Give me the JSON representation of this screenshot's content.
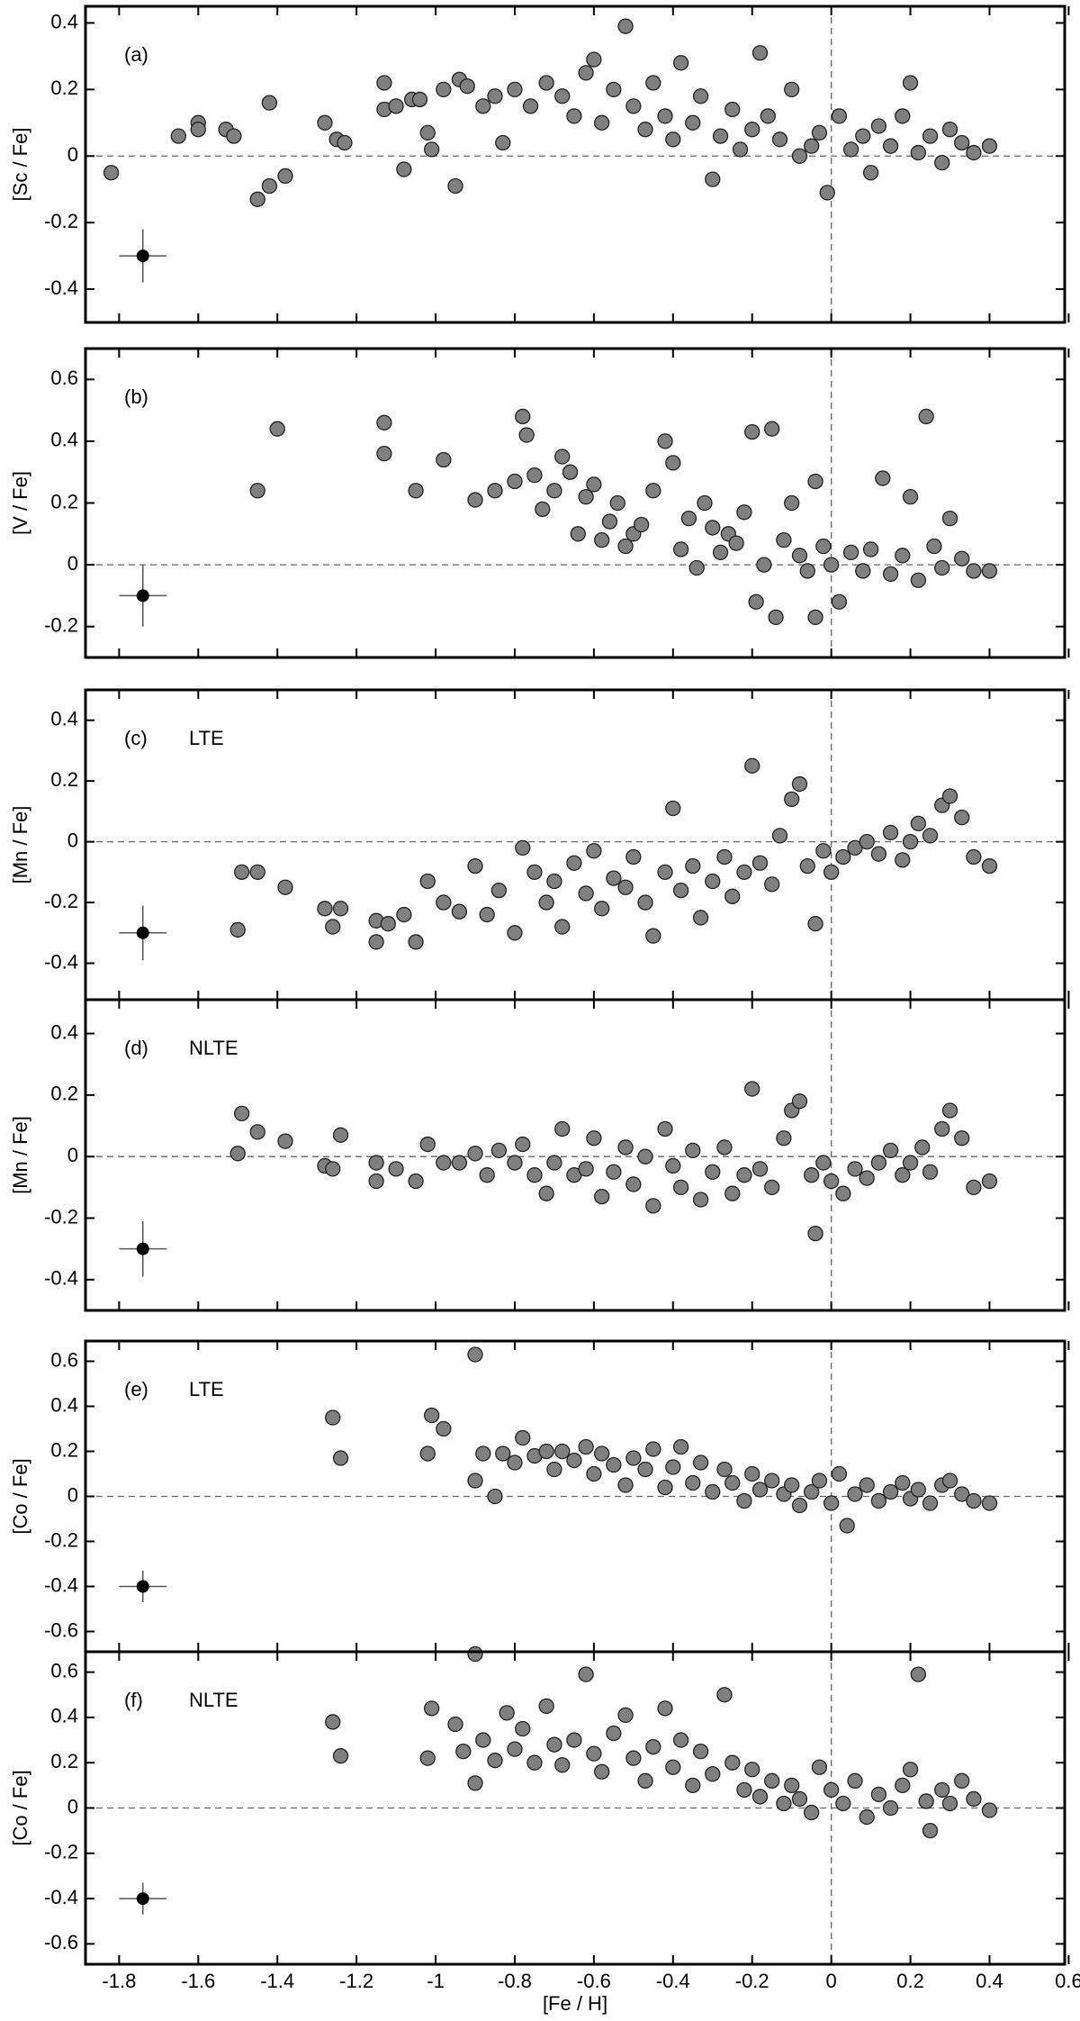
{
  "chart_data": [
    {
      "type": "scatter",
      "panel_label": "(a)",
      "ylabel": "[Sc / Fe]",
      "color": "#808080",
      "xlim": [
        -1.885,
        0.59
      ],
      "ylim": [
        -0.5,
        0.45
      ],
      "xticks": [
        -1.8,
        -1.6,
        -1.4,
        -1.2,
        -1,
        -0.8,
        -0.6,
        -0.4,
        -0.2,
        0,
        0.2,
        0.4,
        0.6
      ],
      "yticks": [
        -0.4,
        -0.2,
        0,
        0.2,
        0.4
      ],
      "xtick_labels": false,
      "hline": 0,
      "vline": 0,
      "error_bar": {
        "x": -1.74,
        "y": -0.3,
        "xerr": 0.06,
        "yerr": 0.08
      },
      "x": [
        -1.82,
        -1.65,
        -1.6,
        -1.6,
        -1.53,
        -1.51,
        -1.45,
        -1.42,
        -1.38,
        -1.42,
        -1.28,
        -1.25,
        -1.23,
        -1.13,
        -1.13,
        -1.1,
        -1.08,
        -1.06,
        -1.04,
        -1.02,
        -1.01,
        -0.98,
        -0.95,
        -0.94,
        -0.92,
        -0.88,
        -0.85,
        -0.83,
        -0.8,
        -0.76,
        -0.72,
        -0.68,
        -0.65,
        -0.62,
        -0.6,
        -0.58,
        -0.55,
        -0.52,
        -0.5,
        -0.47,
        -0.45,
        -0.42,
        -0.4,
        -0.38,
        -0.35,
        -0.33,
        -0.3,
        -0.28,
        -0.25,
        -0.23,
        -0.2,
        -0.18,
        -0.16,
        -0.13,
        -0.1,
        -0.08,
        -0.05,
        -0.03,
        -0.01,
        0.02,
        0.05,
        0.08,
        0.1,
        0.12,
        0.15,
        0.18,
        0.2,
        0.22,
        0.25,
        0.28,
        0.3,
        0.33,
        0.36,
        0.4
      ],
      "y": [
        -0.05,
        0.06,
        0.1,
        0.08,
        0.08,
        0.06,
        -0.13,
        -0.09,
        -0.06,
        0.16,
        0.1,
        0.05,
        0.04,
        0.22,
        0.14,
        0.15,
        -0.04,
        0.17,
        0.17,
        0.07,
        0.02,
        0.2,
        -0.09,
        0.23,
        0.21,
        0.15,
        0.18,
        0.04,
        0.2,
        0.15,
        0.22,
        0.18,
        0.12,
        0.25,
        0.29,
        0.1,
        0.2,
        0.39,
        0.15,
        0.08,
        0.22,
        0.12,
        0.05,
        0.28,
        0.1,
        0.18,
        -0.07,
        0.06,
        0.14,
        0.02,
        0.08,
        0.31,
        0.12,
        0.05,
        0.2,
        0,
        0.03,
        0.07,
        -0.11,
        0.12,
        0.02,
        0.06,
        -0.05,
        0.09,
        0.03,
        0.12,
        0.22,
        0.01,
        0.06,
        -0.02,
        0.08,
        0.04,
        0.01,
        0.03
      ]
    },
    {
      "type": "scatter",
      "panel_label": "(b)",
      "ylabel": "[V / Fe]",
      "color": "#808080",
      "xlim": [
        -1.885,
        0.59
      ],
      "ylim": [
        -0.3,
        0.7
      ],
      "xticks": [
        -1.8,
        -1.6,
        -1.4,
        -1.2,
        -1,
        -0.8,
        -0.6,
        -0.4,
        -0.2,
        0,
        0.2,
        0.4,
        0.6
      ],
      "yticks": [
        -0.2,
        0,
        0.2,
        0.4,
        0.6
      ],
      "xtick_labels": false,
      "hline": 0,
      "vline": 0,
      "error_bar": {
        "x": -1.74,
        "y": -0.1,
        "xerr": 0.06,
        "yerr": 0.1
      },
      "x": [
        -1.45,
        -1.4,
        -1.13,
        -1.13,
        -1.05,
        -0.98,
        -0.9,
        -0.85,
        -0.8,
        -0.78,
        -0.77,
        -0.75,
        -0.73,
        -0.7,
        -0.68,
        -0.66,
        -0.64,
        -0.62,
        -0.6,
        -0.58,
        -0.56,
        -0.54,
        -0.52,
        -0.5,
        -0.48,
        -0.45,
        -0.42,
        -0.4,
        -0.38,
        -0.36,
        -0.34,
        -0.32,
        -0.3,
        -0.28,
        -0.26,
        -0.24,
        -0.22,
        -0.2,
        -0.19,
        -0.17,
        -0.15,
        -0.14,
        -0.12,
        -0.1,
        -0.08,
        -0.06,
        -0.04,
        -0.04,
        -0.02,
        0,
        0.02,
        0.05,
        0.08,
        0.1,
        0.13,
        0.15,
        0.18,
        0.2,
        0.22,
        0.24,
        0.26,
        0.28,
        0.3,
        0.33,
        0.36,
        0.4
      ],
      "y": [
        0.24,
        0.44,
        0.46,
        0.36,
        0.24,
        0.34,
        0.21,
        0.24,
        0.27,
        0.48,
        0.42,
        0.29,
        0.18,
        0.24,
        0.35,
        0.3,
        0.1,
        0.22,
        0.26,
        0.08,
        0.14,
        0.2,
        0.06,
        0.1,
        0.13,
        0.24,
        0.4,
        0.33,
        0.05,
        0.15,
        -0.01,
        0.2,
        0.12,
        0.04,
        0.1,
        0.07,
        0.17,
        0.43,
        -0.12,
        0,
        0.44,
        -0.17,
        0.08,
        0.2,
        0.03,
        -0.02,
        0.27,
        -0.17,
        0.06,
        0,
        -0.12,
        0.04,
        -0.02,
        0.05,
        0.28,
        -0.03,
        0.03,
        0.22,
        -0.05,
        0.48,
        0.06,
        -0.01,
        0.15,
        0.02,
        -0.02,
        -0.02
      ]
    },
    {
      "type": "scatter",
      "panel_label": "(c)",
      "annotation": "LTE",
      "ylabel": "[Mn / Fe]",
      "color": "#808080",
      "xlim": [
        -1.885,
        0.59
      ],
      "ylim": [
        -0.52,
        0.5
      ],
      "xticks": [
        -1.8,
        -1.6,
        -1.4,
        -1.2,
        -1,
        -0.8,
        -0.6,
        -0.4,
        -0.2,
        0,
        0.2,
        0.4,
        0.6
      ],
      "yticks": [
        -0.4,
        -0.2,
        0,
        0.2,
        0.4
      ],
      "xtick_labels": false,
      "hline": 0,
      "vline": 0,
      "error_bar": {
        "x": -1.74,
        "y": -0.3,
        "xerr": 0.06,
        "yerr": 0.09
      },
      "x": [
        -1.5,
        -1.49,
        -1.45,
        -1.38,
        -1.28,
        -1.26,
        -1.24,
        -1.15,
        -1.15,
        -1.12,
        -1.08,
        -1.05,
        -1.02,
        -0.98,
        -0.94,
        -0.9,
        -0.87,
        -0.84,
        -0.8,
        -0.78,
        -0.75,
        -0.72,
        -0.7,
        -0.68,
        -0.65,
        -0.62,
        -0.6,
        -0.58,
        -0.55,
        -0.52,
        -0.5,
        -0.47,
        -0.45,
        -0.42,
        -0.4,
        -0.38,
        -0.35,
        -0.33,
        -0.3,
        -0.27,
        -0.25,
        -0.22,
        -0.2,
        -0.18,
        -0.15,
        -0.13,
        -0.1,
        -0.08,
        -0.06,
        -0.04,
        -0.02,
        0,
        0.03,
        0.06,
        0.09,
        0.12,
        0.15,
        0.18,
        0.2,
        0.22,
        0.25,
        0.28,
        0.3,
        0.33,
        0.36,
        0.4
      ],
      "y": [
        -0.29,
        -0.1,
        -0.1,
        -0.15,
        -0.22,
        -0.28,
        -0.22,
        -0.26,
        -0.33,
        -0.27,
        -0.24,
        -0.33,
        -0.13,
        -0.2,
        -0.23,
        -0.08,
        -0.24,
        -0.16,
        -0.3,
        -0.02,
        -0.1,
        -0.2,
        -0.13,
        -0.28,
        -0.07,
        -0.17,
        -0.03,
        -0.22,
        -0.12,
        -0.15,
        -0.05,
        -0.2,
        -0.31,
        -0.1,
        0.11,
        -0.16,
        -0.08,
        -0.25,
        -0.13,
        -0.05,
        -0.18,
        -0.1,
        0.25,
        -0.07,
        -0.14,
        0.02,
        0.14,
        0.19,
        -0.08,
        -0.27,
        -0.03,
        -0.1,
        -0.05,
        -0.02,
        0,
        -0.04,
        0.03,
        -0.06,
        0,
        0.06,
        0.02,
        0.12,
        0.15,
        0.08,
        -0.05,
        -0.08
      ]
    },
    {
      "type": "scatter",
      "panel_label": "(d)",
      "annotation": "NLTE",
      "ylabel": "[Mn / Fe]",
      "color": "#808080",
      "xlim": [
        -1.885,
        0.59
      ],
      "ylim": [
        -0.5,
        0.51
      ],
      "xticks": [
        -1.8,
        -1.6,
        -1.4,
        -1.2,
        -1,
        -0.8,
        -0.6,
        -0.4,
        -0.2,
        0,
        0.2,
        0.4,
        0.6
      ],
      "yticks": [
        -0.4,
        -0.2,
        0,
        0.2,
        0.4
      ],
      "xtick_labels": false,
      "hline": 0,
      "vline": 0,
      "error_bar": {
        "x": -1.74,
        "y": -0.3,
        "xerr": 0.06,
        "yerr": 0.09
      },
      "x": [
        -1.5,
        -1.49,
        -1.45,
        -1.38,
        -1.28,
        -1.26,
        -1.24,
        -1.15,
        -1.15,
        -1.1,
        -1.05,
        -1.02,
        -0.98,
        -0.94,
        -0.9,
        -0.87,
        -0.84,
        -0.8,
        -0.78,
        -0.75,
        -0.72,
        -0.7,
        -0.68,
        -0.65,
        -0.62,
        -0.6,
        -0.58,
        -0.55,
        -0.52,
        -0.5,
        -0.47,
        -0.45,
        -0.42,
        -0.4,
        -0.38,
        -0.35,
        -0.33,
        -0.3,
        -0.27,
        -0.25,
        -0.22,
        -0.2,
        -0.18,
        -0.15,
        -0.12,
        -0.1,
        -0.08,
        -0.05,
        -0.04,
        -0.02,
        0,
        0.03,
        0.06,
        0.09,
        0.12,
        0.15,
        0.18,
        0.2,
        0.23,
        0.25,
        0.28,
        0.3,
        0.33,
        0.36,
        0.4
      ],
      "y": [
        0.01,
        0.14,
        0.08,
        0.05,
        -0.03,
        -0.04,
        0.07,
        -0.02,
        -0.08,
        -0.04,
        -0.08,
        0.04,
        -0.02,
        -0.02,
        0.01,
        -0.06,
        0.02,
        -0.02,
        0.04,
        -0.06,
        -0.12,
        -0.02,
        0.09,
        -0.06,
        -0.04,
        0.06,
        -0.13,
        -0.05,
        0.03,
        -0.09,
        0,
        -0.16,
        0.09,
        -0.03,
        -0.1,
        0.02,
        -0.14,
        -0.05,
        0.03,
        -0.12,
        -0.06,
        0.22,
        -0.04,
        -0.1,
        0.06,
        0.15,
        0.18,
        -0.06,
        -0.25,
        -0.02,
        -0.08,
        -0.12,
        -0.04,
        -0.07,
        -0.02,
        0.02,
        -0.06,
        -0.02,
        0.03,
        -0.05,
        0.09,
        0.15,
        0.06,
        -0.1,
        -0.08
      ]
    },
    {
      "type": "scatter",
      "panel_label": "(e)",
      "annotation": "LTE",
      "ylabel": "[Co / Fe]",
      "color": "#808080",
      "xlim": [
        -1.885,
        0.59
      ],
      "ylim": [
        -0.69,
        0.69
      ],
      "xticks": [
        -1.8,
        -1.6,
        -1.4,
        -1.2,
        -1,
        -0.8,
        -0.6,
        -0.4,
        -0.2,
        0,
        0.2,
        0.4,
        0.6
      ],
      "yticks": [
        -0.6,
        -0.4,
        -0.2,
        0,
        0.2,
        0.4,
        0.6
      ],
      "xtick_labels": false,
      "hline": 0,
      "vline": 0,
      "error_bar": {
        "x": -1.74,
        "y": -0.4,
        "xerr": 0.06,
        "yerr": 0.07
      },
      "x": [
        -1.26,
        -1.24,
        -1.02,
        -1.01,
        -0.98,
        -0.9,
        -0.9,
        -0.88,
        -0.85,
        -0.83,
        -0.8,
        -0.78,
        -0.75,
        -0.72,
        -0.7,
        -0.68,
        -0.65,
        -0.62,
        -0.6,
        -0.58,
        -0.55,
        -0.52,
        -0.5,
        -0.47,
        -0.45,
        -0.42,
        -0.4,
        -0.38,
        -0.35,
        -0.33,
        -0.3,
        -0.27,
        -0.25,
        -0.22,
        -0.2,
        -0.18,
        -0.15,
        -0.12,
        -0.1,
        -0.08,
        -0.05,
        -0.03,
        0,
        0.02,
        0.04,
        0.06,
        0.09,
        0.12,
        0.15,
        0.18,
        0.2,
        0.22,
        0.25,
        0.28,
        0.3,
        0.33,
        0.36,
        0.4
      ],
      "y": [
        0.35,
        0.17,
        0.19,
        0.36,
        0.3,
        0.63,
        0.07,
        0.19,
        0,
        0.19,
        0.15,
        0.26,
        0.18,
        0.2,
        0.12,
        0.2,
        0.16,
        0.22,
        0.1,
        0.19,
        0.14,
        0.05,
        0.17,
        0.12,
        0.21,
        0.04,
        0.13,
        0.22,
        0.06,
        0.15,
        0.02,
        0.12,
        0.06,
        -0.02,
        0.1,
        0.03,
        0.07,
        0.01,
        0.05,
        -0.04,
        0.02,
        0.07,
        -0.03,
        0.1,
        -0.13,
        0.01,
        0.05,
        -0.02,
        0.02,
        0.06,
        -0.01,
        0.03,
        -0.03,
        0.05,
        0.07,
        0.01,
        -0.02,
        -0.03
      ]
    },
    {
      "type": "scatter",
      "panel_label": "(f)",
      "annotation": "NLTE",
      "ylabel": "[Co / Fe]",
      "xlabel": "[Fe / H]",
      "color": "#808080",
      "xlim": [
        -1.885,
        0.59
      ],
      "ylim": [
        -0.69,
        0.69
      ],
      "xticks": [
        -1.8,
        -1.6,
        -1.4,
        -1.2,
        -1,
        -0.8,
        -0.6,
        -0.4,
        -0.2,
        0,
        0.2,
        0.4,
        0.6
      ],
      "yticks": [
        -0.6,
        -0.4,
        -0.2,
        0,
        0.2,
        0.4,
        0.6
      ],
      "xtick_labels": true,
      "hline": 0,
      "vline": 0,
      "error_bar": {
        "x": -1.74,
        "y": -0.4,
        "xerr": 0.06,
        "yerr": 0.07
      },
      "x": [
        -1.26,
        -1.24,
        -1.02,
        -1.01,
        -0.95,
        -0.93,
        -0.9,
        -0.9,
        -0.88,
        -0.85,
        -0.82,
        -0.8,
        -0.78,
        -0.75,
        -0.72,
        -0.7,
        -0.68,
        -0.65,
        -0.62,
        -0.6,
        -0.58,
        -0.55,
        -0.52,
        -0.5,
        -0.47,
        -0.45,
        -0.42,
        -0.4,
        -0.38,
        -0.35,
        -0.33,
        -0.3,
        -0.27,
        -0.25,
        -0.22,
        -0.2,
        -0.18,
        -0.15,
        -0.12,
        -0.1,
        -0.08,
        -0.05,
        -0.03,
        0,
        0.03,
        0.06,
        0.09,
        0.12,
        0.15,
        0.18,
        0.2,
        0.22,
        0.24,
        0.25,
        0.28,
        0.3,
        0.33,
        0.36,
        0.4
      ],
      "y": [
        0.38,
        0.23,
        0.22,
        0.44,
        0.37,
        0.25,
        0.68,
        0.11,
        0.3,
        0.21,
        0.42,
        0.26,
        0.35,
        0.2,
        0.45,
        0.28,
        0.19,
        0.3,
        0.59,
        0.24,
        0.16,
        0.33,
        0.41,
        0.22,
        0.12,
        0.27,
        0.44,
        0.18,
        0.3,
        0.1,
        0.25,
        0.15,
        0.5,
        0.2,
        0.08,
        0.17,
        0.05,
        0.12,
        0.02,
        0.1,
        0.04,
        -0.02,
        0.18,
        0.08,
        0.02,
        0.12,
        -0.04,
        0.06,
        0,
        0.1,
        0.17,
        0.59,
        0.03,
        -0.1,
        0.08,
        0.02,
        0.12,
        0.04,
        -0.01
      ]
    }
  ]
}
